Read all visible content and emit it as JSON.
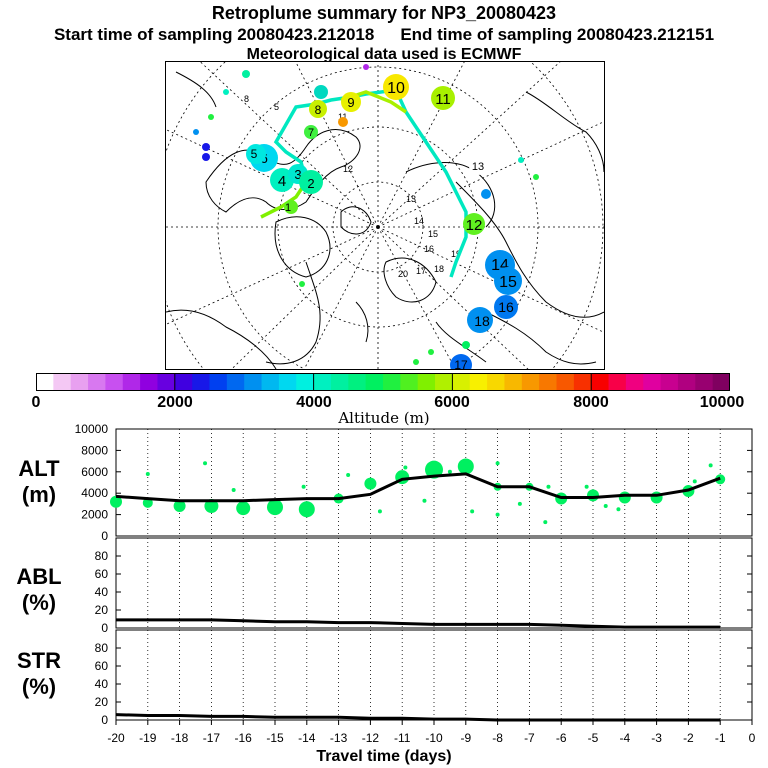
{
  "header": {
    "title": "Retroplume summary for NP3_20080423",
    "start_label": "Start time of sampling 20080423.212018",
    "end_label": "End time of sampling 20080423.212151",
    "met_label": "Meteorological data used is ECMWF"
  },
  "colorbar": {
    "ticks": [
      "0",
      "2000",
      "4000",
      "6000",
      "8000",
      "10000"
    ],
    "label": "Altitude (m)",
    "colors": [
      "#ffffff",
      "#f4c8f4",
      "#e8a0f0",
      "#d878f0",
      "#c850f0",
      "#b028e8",
      "#9000e0",
      "#6800e0",
      "#4000e0",
      "#1818e8",
      "#0040f0",
      "#0068f0",
      "#0090f0",
      "#00b8f0",
      "#00d8f0",
      "#00f0e0",
      "#00f0c0",
      "#00f0a0",
      "#00f080",
      "#00f060",
      "#20f040",
      "#50f020",
      "#80f000",
      "#b0f000",
      "#d8f000",
      "#f8f000",
      "#f8d800",
      "#f8b800",
      "#f89800",
      "#f87800",
      "#f85800",
      "#f83000",
      "#f80000",
      "#f80048",
      "#f00080",
      "#e000a0",
      "#c80090",
      "#b00080",
      "#980070",
      "#800060"
    ]
  },
  "map": {
    "markers": [
      {
        "label": "10",
        "color": "#f8e800"
      },
      {
        "label": "11",
        "color": "#a8f000"
      },
      {
        "label": "9",
        "color": "#e8f000"
      },
      {
        "label": "8",
        "color": "#c8f000"
      },
      {
        "label": "7",
        "color": "#40f040"
      },
      {
        "label": "6",
        "color": "#00d8f0"
      },
      {
        "label": "5",
        "color": "#00e8e0"
      },
      {
        "label": "4",
        "color": "#00f0c0"
      },
      {
        "label": "3",
        "color": "#00e8d0"
      },
      {
        "label": "2",
        "color": "#00f0a0"
      },
      {
        "label": "1",
        "color": "#60f020"
      },
      {
        "label": "12",
        "color": "#60f020"
      },
      {
        "label": "13",
        "color": "#ffffff"
      },
      {
        "label": "14",
        "color": "#0090f0"
      },
      {
        "label": "15",
        "color": "#0090f0"
      },
      {
        "label": "16",
        "color": "#0078f0"
      },
      {
        "label": "18",
        "color": "#0090f0"
      },
      {
        "label": "17",
        "color": "#0068f0"
      }
    ]
  },
  "chart_data": [
    {
      "type": "line",
      "panel": "ALT",
      "ylabel": "ALT\n(m)",
      "ylabel_lines": [
        "ALT",
        "(m)"
      ],
      "ylim": [
        0,
        10000
      ],
      "yticks": [
        "0",
        "2000",
        "4000",
        "6000",
        "8000",
        "10000"
      ],
      "xlim": [
        -20,
        0
      ],
      "x": [
        -20,
        -19,
        -18,
        -17,
        -16,
        -15,
        -14,
        -13,
        -12,
        -11,
        -10,
        -9,
        -8,
        -7,
        -6,
        -5,
        -4,
        -3,
        -2,
        -1
      ],
      "values": [
        3700,
        3500,
        3300,
        3300,
        3300,
        3400,
        3500,
        3500,
        3900,
        5300,
        5600,
        5800,
        4600,
        4600,
        3600,
        3600,
        3800,
        3800,
        4300,
        5400
      ],
      "marker_values": [
        3200,
        3100,
        2800,
        2800,
        2600,
        2700,
        2500,
        3500,
        4900,
        5500,
        6200,
        6500,
        4600,
        4600,
        3500,
        3800,
        3600,
        3600,
        4200,
        5300
      ]
    },
    {
      "type": "line",
      "panel": "ABL",
      "ylabel_lines": [
        "ABL",
        "(%)"
      ],
      "ylim": [
        0,
        100
      ],
      "yticks": [
        "0",
        "20",
        "40",
        "60",
        "80"
      ],
      "xlim": [
        -20,
        0
      ],
      "x": [
        -20,
        -19,
        -18,
        -17,
        -16,
        -15,
        -14,
        -13,
        -12,
        -11,
        -10,
        -9,
        -8,
        -7,
        -6,
        -5,
        -4,
        -3,
        -2,
        -1
      ],
      "values": [
        9,
        9,
        9,
        9,
        8,
        7,
        7,
        6,
        6,
        5,
        4,
        4,
        4,
        4,
        3,
        2,
        1,
        1,
        1,
        1
      ]
    },
    {
      "type": "line",
      "panel": "STR",
      "ylabel_lines": [
        "STR",
        "(%)"
      ],
      "ylim": [
        0,
        100
      ],
      "yticks": [
        "0",
        "20",
        "40",
        "60",
        "80"
      ],
      "xlim": [
        -20,
        0
      ],
      "x": [
        -20,
        -19,
        -18,
        -17,
        -16,
        -15,
        -14,
        -13,
        -12,
        -11,
        -10,
        -9,
        -8,
        -7,
        -6,
        -5,
        -4,
        -3,
        -2,
        -1
      ],
      "values": [
        6,
        5,
        5,
        4,
        4,
        3,
        3,
        3,
        2,
        2,
        1,
        1,
        0,
        0,
        0,
        0,
        0,
        0,
        0,
        0
      ]
    }
  ],
  "xaxis": {
    "ticks": [
      "-20",
      "-19",
      "-18",
      "-17",
      "-16",
      "-15",
      "-14",
      "-13",
      "-12",
      "-11",
      "-10",
      "-9",
      "-8",
      "-7",
      "-6",
      "-5",
      "-4",
      "-3",
      "-2",
      "-1",
      "0"
    ],
    "label": "Travel time (days)"
  }
}
